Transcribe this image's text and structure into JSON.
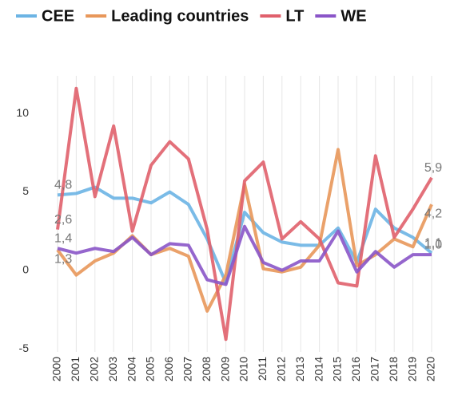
{
  "chart_data": {
    "type": "line",
    "categories": [
      "2000",
      "2001",
      "2002",
      "2003",
      "2004",
      "2005",
      "2006",
      "2007",
      "2008",
      "2009",
      "2010",
      "2011",
      "2012",
      "2013",
      "2014",
      "2015",
      "2016",
      "2017",
      "2018",
      "2019",
      "2020"
    ],
    "series": [
      {
        "name": "CEE",
        "color": "#6cb4e4",
        "values": [
          4.8,
          4.9,
          5.3,
          4.6,
          4.6,
          4.3,
          5.0,
          4.2,
          2.0,
          -0.8,
          3.7,
          2.4,
          1.8,
          1.6,
          1.6,
          2.7,
          0.5,
          3.9,
          2.7,
          2.1,
          1.1
        ],
        "value_labels": [
          "4,8",
          null,
          null,
          null,
          null,
          null,
          null,
          null,
          null,
          null,
          null,
          null,
          null,
          null,
          null,
          null,
          null,
          null,
          null,
          null,
          "1,1"
        ]
      },
      {
        "name": "Leading countries",
        "color": "#e8975a",
        "values": [
          1.3,
          -0.3,
          0.6,
          1.1,
          2.2,
          1.0,
          1.4,
          0.9,
          -2.6,
          -0.3,
          5.5,
          0.1,
          -0.1,
          0.2,
          1.6,
          7.7,
          0.3,
          1.0,
          2.0,
          1.5,
          4.2
        ],
        "value_labels": [
          "1,3",
          null,
          null,
          null,
          null,
          null,
          null,
          null,
          null,
          null,
          null,
          null,
          null,
          null,
          null,
          null,
          null,
          null,
          null,
          null,
          "4,2"
        ]
      },
      {
        "name": "LT",
        "color": "#e0606c",
        "values": [
          2.6,
          11.6,
          4.7,
          9.2,
          2.5,
          6.7,
          8.2,
          7.1,
          2.6,
          -4.4,
          5.7,
          6.9,
          2.0,
          3.1,
          2.0,
          -0.8,
          -1.0,
          7.3,
          2.1,
          3.9,
          5.9
        ],
        "value_labels": [
          "2,6",
          null,
          null,
          null,
          null,
          null,
          null,
          null,
          null,
          null,
          null,
          null,
          null,
          null,
          null,
          null,
          null,
          null,
          null,
          null,
          "5,9"
        ]
      },
      {
        "name": "WE",
        "color": "#8a55c8",
        "values": [
          1.4,
          1.1,
          1.4,
          1.2,
          2.1,
          1.0,
          1.7,
          1.6,
          -0.6,
          -0.9,
          2.8,
          0.5,
          0.0,
          0.6,
          0.6,
          2.5,
          -0.1,
          1.2,
          0.2,
          1.0,
          1.0
        ],
        "value_labels": [
          "1,4",
          null,
          null,
          null,
          null,
          null,
          null,
          null,
          null,
          null,
          null,
          null,
          null,
          null,
          null,
          null,
          null,
          null,
          null,
          null,
          "1,0"
        ]
      }
    ],
    "ylim": [
      -5.2,
      12.4
    ],
    "yticks": [
      -5,
      0,
      5,
      10
    ],
    "grid": true
  }
}
